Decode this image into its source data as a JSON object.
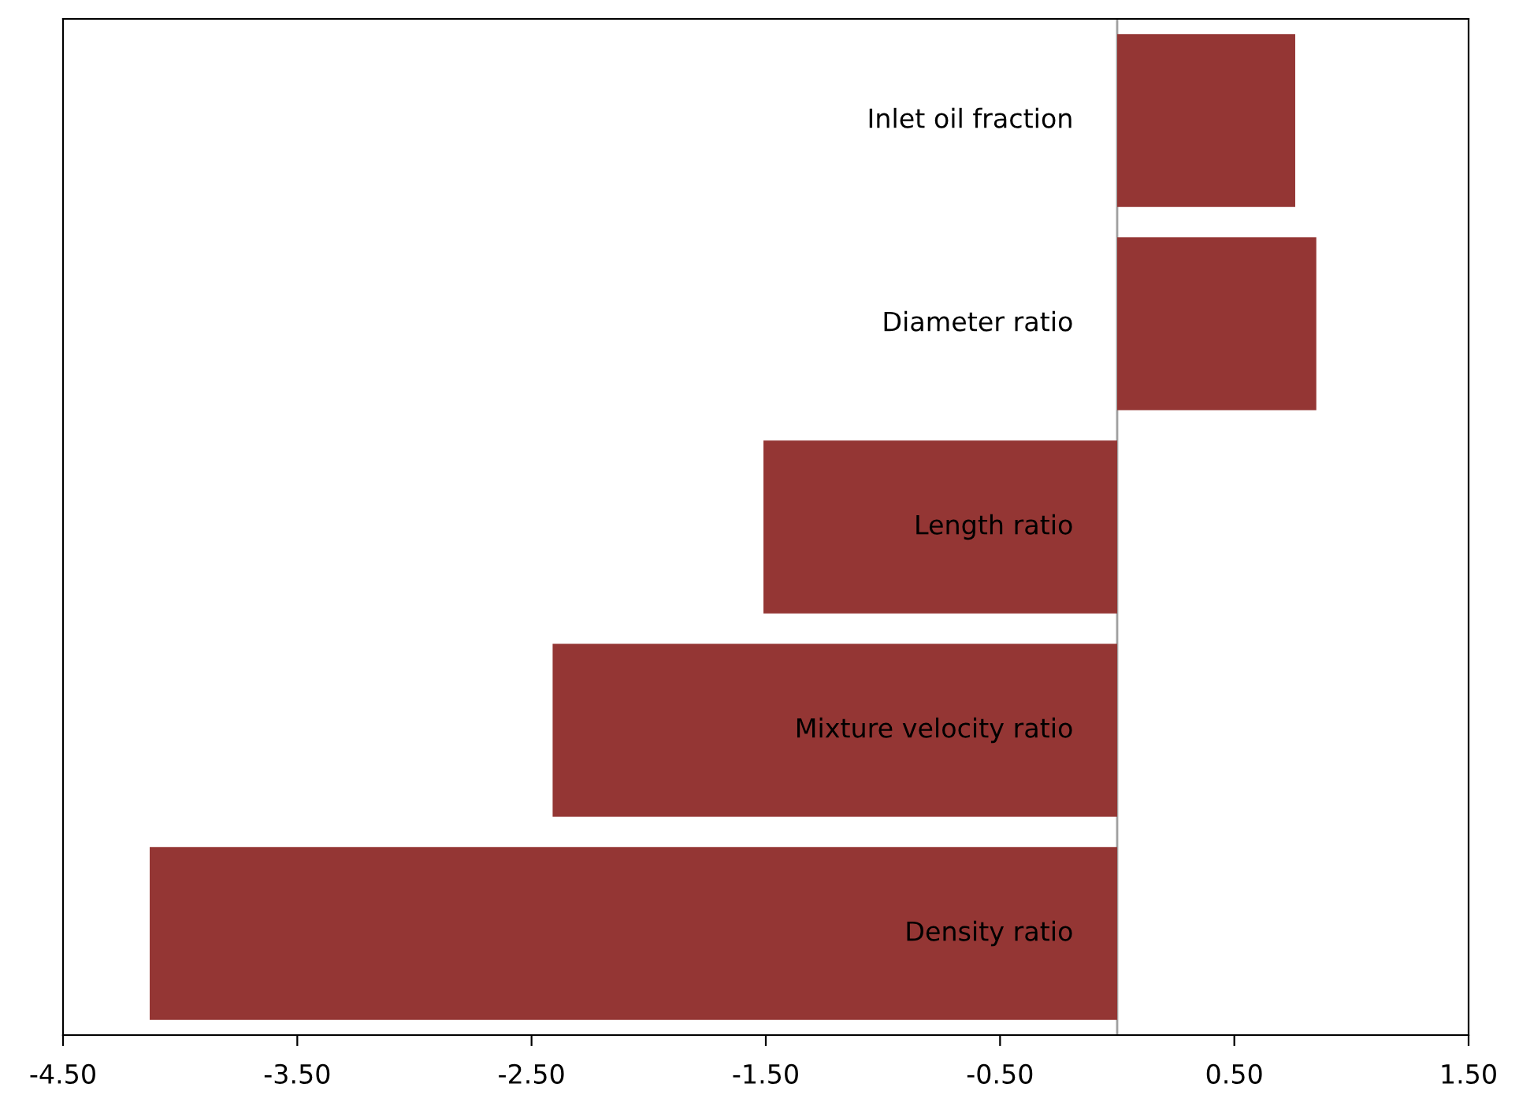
{
  "chart_data": {
    "type": "bar",
    "orientation": "horizontal",
    "categories": [
      "Inlet oil fraction",
      "Diameter ratio",
      "Length ratio",
      "Mixture velocity ratio",
      "Density ratio"
    ],
    "values": [
      0.76,
      0.85,
      -1.51,
      -2.41,
      -4.13
    ],
    "color": "#943634",
    "xlim": [
      -4.5,
      1.5
    ],
    "xticks": [
      {
        "value": -4.5,
        "label": "-4.50"
      },
      {
        "value": -3.5,
        "label": "-3.50"
      },
      {
        "value": -2.5,
        "label": "-2.50"
      },
      {
        "value": -1.5,
        "label": "-1.50"
      },
      {
        "value": -0.5,
        "label": "-0.50"
      },
      {
        "value": 0.5,
        "label": "0.50"
      },
      {
        "value": 1.5,
        "label": "1.50"
      }
    ],
    "grid": false,
    "legend": false
  }
}
